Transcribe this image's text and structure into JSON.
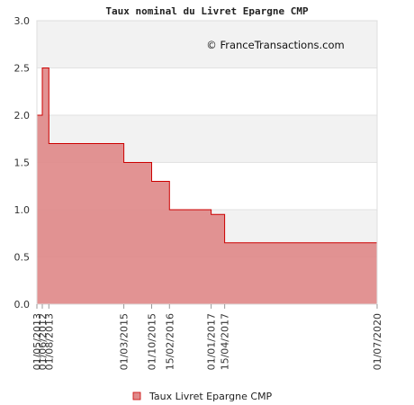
{
  "chart_data": {
    "type": "area",
    "step": "post",
    "title": "Taux nominal du Livret Epargne CMP",
    "credit": "© FranceTransactions.com",
    "xlabel": "",
    "ylabel": "",
    "ylim": [
      0,
      3.0
    ],
    "yticks": [
      "0.0",
      "0.5",
      "1.0",
      "1.5",
      "2.0",
      "2.5",
      "3.0"
    ],
    "grid": true,
    "legend_position": "bottom",
    "series": [
      {
        "name": "Taux Livret Epargne CMP",
        "color": "#e08a8a",
        "line_color": "#cc0000",
        "x": [
          "01/05/2013",
          "01/06/2012",
          "01/08/2013",
          "01/03/2015",
          "01/10/2015",
          "15/02/2016",
          "01/01/2017",
          "15/04/2017",
          "01/07/2020"
        ],
        "values": [
          2.0,
          2.5,
          1.7,
          1.5,
          1.3,
          1.0,
          0.95,
          0.65,
          0.65
        ]
      }
    ],
    "xticks": [
      "01/05/2013",
      "01/06/2012",
      "01/08/2013",
      "01/03/2015",
      "01/10/2015",
      "15/02/2016",
      "01/01/2017",
      "15/04/2017",
      "01/07/2020"
    ]
  }
}
